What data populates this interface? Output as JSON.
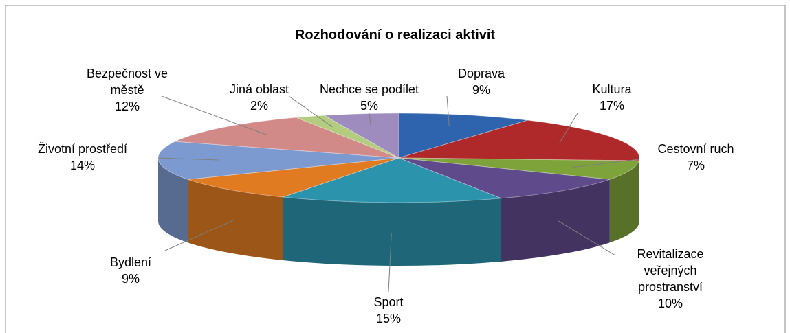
{
  "chart_data": {
    "type": "pie3d",
    "title": "Rozhodování o realizaci aktivit",
    "categories": [
      "Doprava",
      "Kultura",
      "Cestovní ruch",
      "Revitalizace veřejných prostranství",
      "Sport",
      "Bydlení",
      "Životní prostředí",
      "Bezpečnost ve městě",
      "Jiná oblast",
      "Nechce se podílet"
    ],
    "values": [
      9,
      17,
      7,
      10,
      15,
      9,
      14,
      12,
      2,
      5
    ],
    "value_labels": [
      "9%",
      "17%",
      "7%",
      "10%",
      "15%",
      "9%",
      "14%",
      "12%",
      "2%",
      "5%"
    ],
    "colors": [
      "#2e63ad",
      "#b0292a",
      "#7fa33b",
      "#5f4a8b",
      "#2c93ad",
      "#e07b22",
      "#7d9ad0",
      "#d28a88",
      "#b3cc80",
      "#9e8cbf"
    ]
  }
}
